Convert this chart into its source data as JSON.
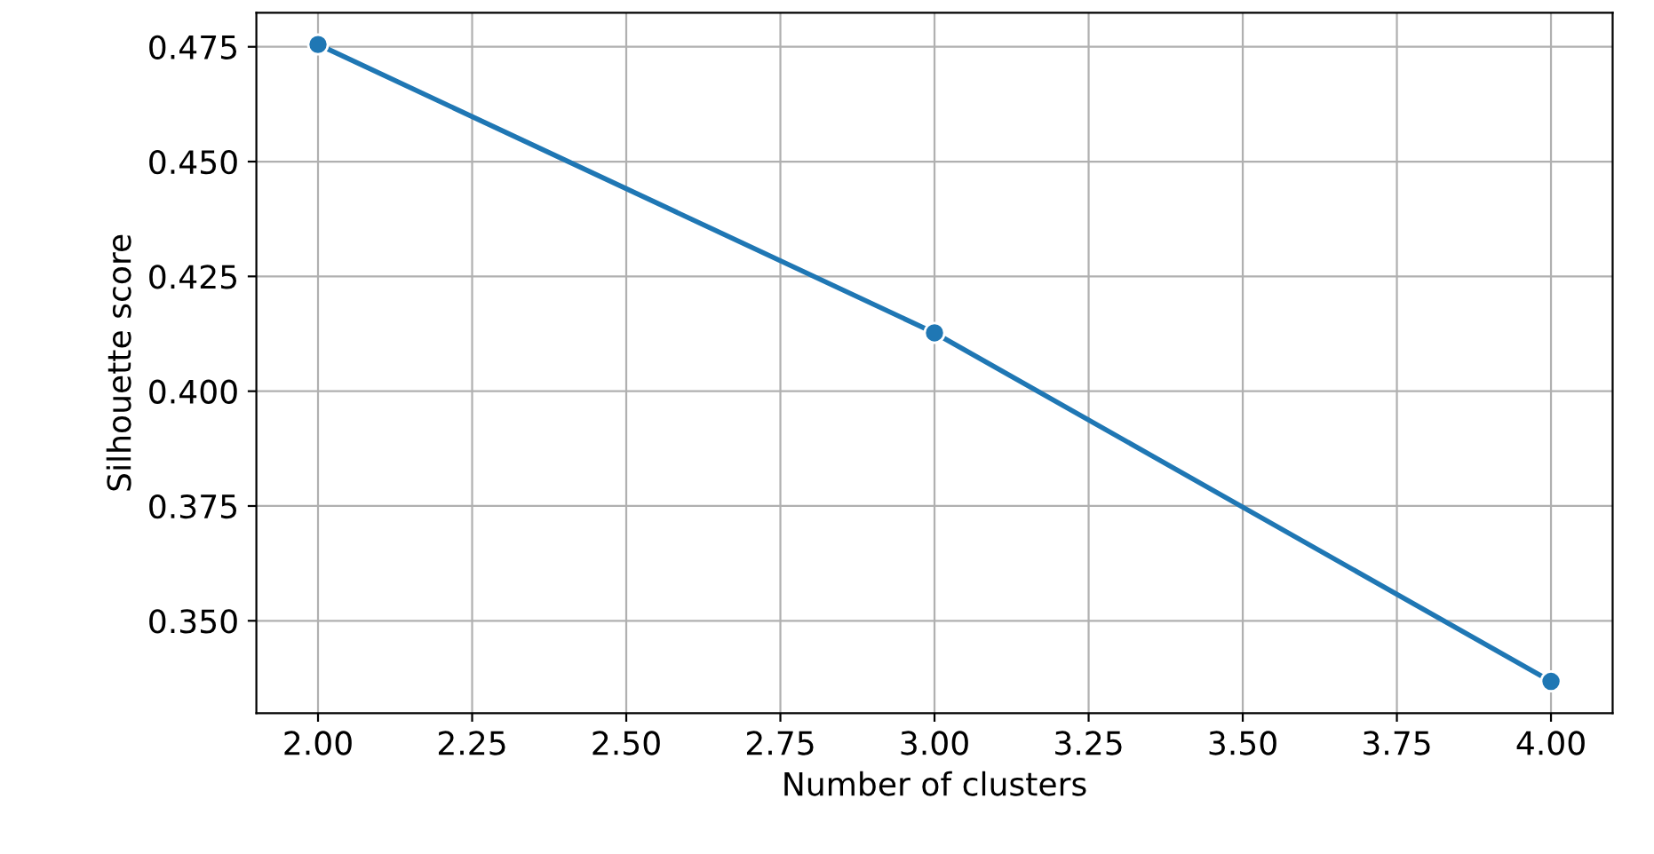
{
  "chart_data": {
    "type": "line",
    "xlabel": "Number of clusters",
    "ylabel": "Silhouette score",
    "x": [
      2,
      3,
      4
    ],
    "series": [
      {
        "color": "#1f77b4",
        "values": [
          0.4755,
          0.4127,
          0.3368
        ]
      }
    ],
    "xlim": [
      1.9,
      4.1
    ],
    "ylim": [
      0.3299,
      0.4824
    ],
    "xticks": [
      {
        "value": 2,
        "label": "2.00"
      },
      {
        "value": 2.25,
        "label": "2.25"
      },
      {
        "value": 2.5,
        "label": "2.50"
      },
      {
        "value": 2.75,
        "label": "2.75"
      },
      {
        "value": 3,
        "label": "3.00"
      },
      {
        "value": 3.25,
        "label": "3.25"
      },
      {
        "value": 3.5,
        "label": "3.50"
      },
      {
        "value": 3.75,
        "label": "3.75"
      },
      {
        "value": 4,
        "label": "4.00"
      }
    ],
    "yticks": [
      {
        "value": 0.35,
        "label": "0.350"
      },
      {
        "value": 0.375,
        "label": "0.375"
      },
      {
        "value": 0.4,
        "label": "0.400"
      },
      {
        "value": 0.425,
        "label": "0.425"
      },
      {
        "value": 0.45,
        "label": "0.450"
      },
      {
        "value": 0.475,
        "label": "0.475"
      }
    ],
    "grid": true,
    "marker": "circle",
    "line_style": "solid",
    "legend": false
  }
}
